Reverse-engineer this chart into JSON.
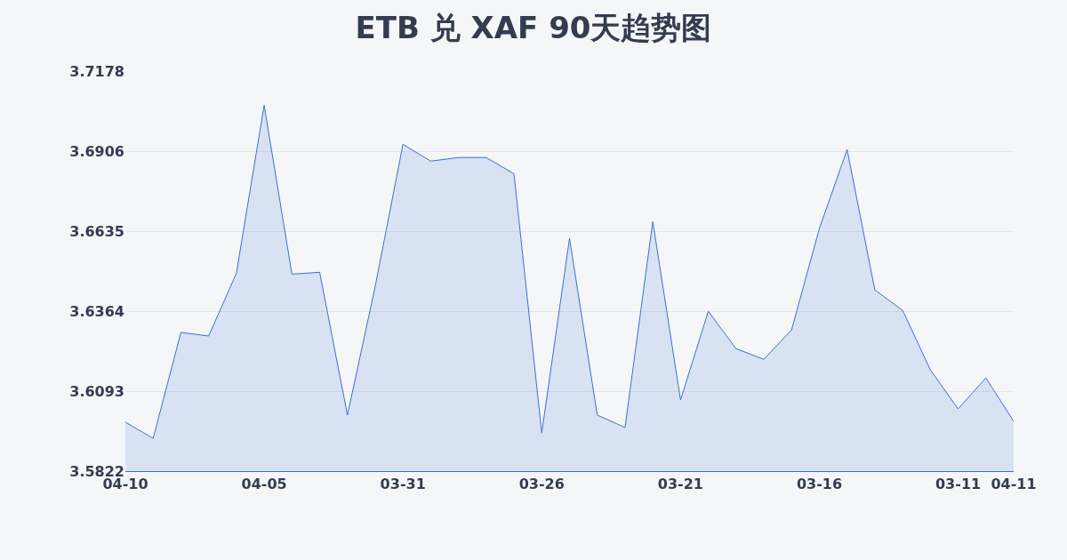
{
  "chart_data": {
    "type": "area",
    "title": "ETB 兑 XAF 90天趋势图",
    "categories": [
      "04-10",
      null,
      null,
      null,
      null,
      "04-05",
      null,
      null,
      null,
      null,
      "03-31",
      null,
      null,
      null,
      null,
      "03-26",
      null,
      null,
      null,
      null,
      "03-21",
      null,
      null,
      null,
      null,
      "03-16",
      null,
      null,
      null,
      null,
      "03-11",
      null,
      "04-11"
    ],
    "series": [
      {
        "color": "#3b6fd4",
        "values": [
          3.5988,
          3.5933,
          3.6292,
          3.628,
          3.6493,
          3.7062,
          3.649,
          3.6496,
          3.6012,
          3.6448,
          3.693,
          3.6873,
          3.6885,
          3.6885,
          3.683,
          3.5951,
          3.6611,
          3.6012,
          3.597,
          3.6668,
          3.6063,
          3.6364,
          3.6237,
          3.6201,
          3.6301,
          3.6644,
          3.6912,
          3.6436,
          3.6367,
          3.6165,
          3.6033,
          3.6138,
          3.5991
        ]
      }
    ],
    "ylim": [
      3.5822,
      3.7178
    ],
    "yticks": [
      3.5822,
      3.6093,
      3.6364,
      3.6635,
      3.6906,
      3.7178
    ],
    "grid": "y",
    "marker": "none",
    "line_style": "solid",
    "legend": false
  }
}
